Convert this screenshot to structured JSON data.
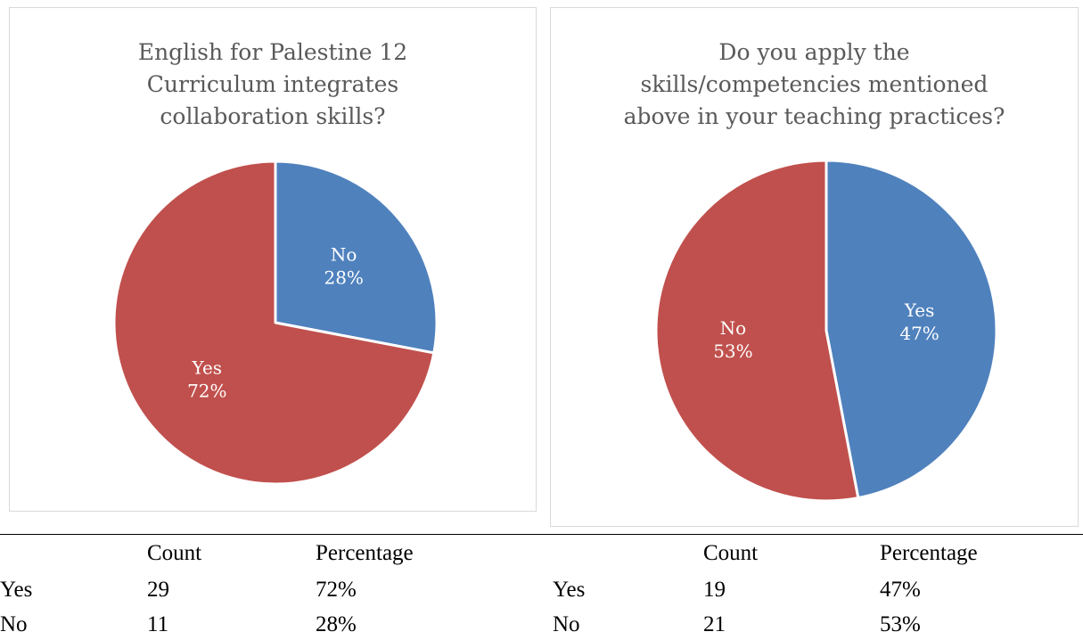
{
  "chart_data": [
    {
      "type": "pie",
      "title": "English for Palestine 12\nCurriculum integrates\ncollaboration skills?",
      "slices": [
        {
          "label": "No",
          "value": 28,
          "display": "28%",
          "color": "#4F81BD"
        },
        {
          "label": "Yes",
          "value": 72,
          "display": "72%",
          "color": "#C0504D"
        }
      ]
    },
    {
      "type": "pie",
      "title": "Do you apply the\nskills/competencies mentioned\nabove in your teaching practices?",
      "slices": [
        {
          "label": "Yes",
          "value": 47,
          "display": "47%",
          "color": "#4F81BD"
        },
        {
          "label": "No",
          "value": 53,
          "display": "53%",
          "color": "#C0504D"
        }
      ]
    }
  ],
  "tables": [
    {
      "headers": [
        "",
        "Count",
        "Percentage"
      ],
      "rows": [
        [
          "Yes",
          "29",
          "72%"
        ],
        [
          "No",
          "11",
          "28%"
        ]
      ]
    },
    {
      "headers": [
        "",
        "Count",
        "Percentage"
      ],
      "rows": [
        [
          "Yes",
          "19",
          "47%"
        ],
        [
          "No",
          "21",
          "53%"
        ]
      ]
    }
  ]
}
